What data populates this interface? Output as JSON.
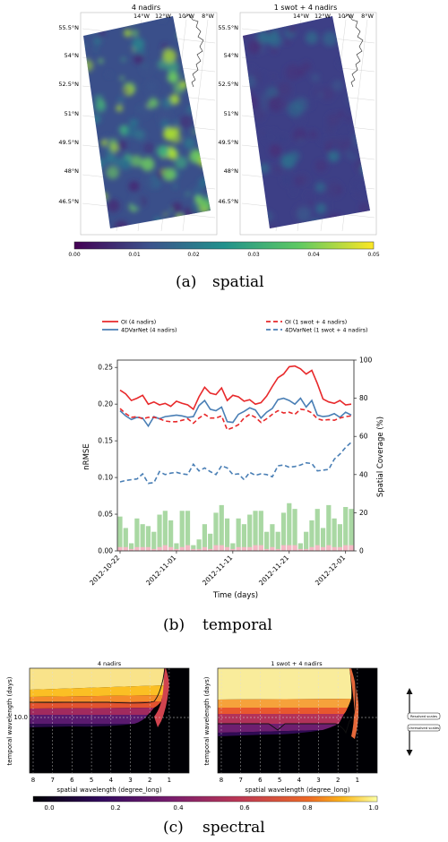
{
  "panel_a": {
    "maps": [
      {
        "title": "4 nadirs",
        "lon_ticks": [
          "14°W",
          "12°W",
          "10°W",
          "8°W"
        ],
        "lat_ticks": [
          "55.5°N",
          "54°N",
          "52.5°N",
          "51°N",
          "49.5°N",
          "48°N",
          "46.5°N"
        ]
      },
      {
        "title": "1 swot + 4 nadirs",
        "lon_ticks": [
          "14°W",
          "12°W",
          "10°W",
          "8°W"
        ],
        "lat_ticks": [
          "55.5°N",
          "54°N",
          "52.5°N",
          "51°N",
          "49.5°N",
          "48°N",
          "46.5°N"
        ]
      }
    ],
    "colorbar": {
      "ticks": [
        "0.00",
        "0.01",
        "0.02",
        "0.03",
        "0.04",
        "0.05"
      ],
      "colormap": "viridis"
    },
    "caption_label": "(a)",
    "caption_text": "spatial"
  },
  "panel_b": {
    "caption_label": "(b)",
    "caption_text": "temporal"
  },
  "panel_c": {
    "heatmaps": [
      {
        "title": "4 nadirs",
        "ylabel": "temporal wavelength (days)",
        "xlabel": "spatial wavelength (degree_long)",
        "x_ticks": [
          "8",
          "7",
          "6",
          "5",
          "4",
          "3",
          "2",
          "1"
        ],
        "y_ticks": [
          "10.0"
        ]
      },
      {
        "title": "1 swot + 4 nadirs",
        "ylabel": "temporal wavelength (days)",
        "xlabel": "spatial wavelength (degree_long)",
        "x_ticks": [
          "8",
          "7",
          "6",
          "5",
          "4",
          "3",
          "2",
          "1"
        ],
        "y_ticks": []
      }
    ],
    "legend": {
      "resolved": "Resolved scales",
      "unresolved": "Unresolved scales"
    },
    "colorbar": {
      "ticks": [
        "0.0",
        "0.2",
        "0.4",
        "0.6",
        "0.8",
        "1.0"
      ],
      "colormap": "inferno"
    },
    "caption_label": "(c)",
    "caption_text": "spectral"
  },
  "chart_data": {
    "type": "line",
    "xlabel": "Time (days)",
    "ylabel": "nRMSE",
    "ylabel_right": "Spatial Coverage (%)",
    "x": [
      "2012-10-22",
      "2012-10-23",
      "2012-10-24",
      "2012-10-25",
      "2012-10-26",
      "2012-10-27",
      "2012-10-28",
      "2012-10-29",
      "2012-10-30",
      "2012-10-31",
      "2012-11-01",
      "2012-11-02",
      "2012-11-03",
      "2012-11-04",
      "2012-11-05",
      "2012-11-06",
      "2012-11-07",
      "2012-11-08",
      "2012-11-09",
      "2012-11-10",
      "2012-11-11",
      "2012-11-12",
      "2012-11-13",
      "2012-11-14",
      "2012-11-15",
      "2012-11-16",
      "2012-11-17",
      "2012-11-18",
      "2012-11-19",
      "2012-11-20",
      "2012-11-21",
      "2012-11-22",
      "2012-11-23",
      "2012-11-24",
      "2012-11-25",
      "2012-11-26",
      "2012-11-27",
      "2012-11-28",
      "2012-11-29",
      "2012-11-30",
      "2012-12-01",
      "2012-12-02"
    ],
    "x_ticks": [
      "2012-10-22",
      "2012-11-01",
      "2012-11-11",
      "2012-11-21",
      "2012-12-01"
    ],
    "ylim": [
      0,
      0.26
    ],
    "y_ticks": [
      "0.00",
      "0.05",
      "0.10",
      "0.15",
      "0.20",
      "0.25"
    ],
    "ylim_right": [
      0,
      100
    ],
    "y_ticks_right": [
      "0",
      "20",
      "40",
      "60",
      "80",
      "100"
    ],
    "legend_placement": "top",
    "series": [
      {
        "name": "OI (4 nadirs)",
        "color": "#e8292b",
        "dash": "solid",
        "values": [
          0.219,
          0.214,
          0.205,
          0.208,
          0.212,
          0.2,
          0.203,
          0.199,
          0.201,
          0.197,
          0.204,
          0.201,
          0.199,
          0.193,
          0.21,
          0.223,
          0.215,
          0.213,
          0.222,
          0.205,
          0.212,
          0.21,
          0.204,
          0.206,
          0.2,
          0.202,
          0.211,
          0.224,
          0.236,
          0.241,
          0.251,
          0.252,
          0.248,
          0.241,
          0.246,
          0.228,
          0.207,
          0.203,
          0.201,
          0.205,
          0.199,
          0.2
        ]
      },
      {
        "name": "4DVarNet (4 nadirs)",
        "color": "#4a7fb5",
        "dash": "solid",
        "values": [
          0.191,
          0.184,
          0.179,
          0.182,
          0.181,
          0.17,
          0.183,
          0.18,
          0.183,
          0.184,
          0.185,
          0.184,
          0.182,
          0.183,
          0.198,
          0.205,
          0.193,
          0.191,
          0.196,
          0.176,
          0.175,
          0.186,
          0.19,
          0.195,
          0.192,
          0.181,
          0.189,
          0.194,
          0.206,
          0.208,
          0.205,
          0.2,
          0.208,
          0.196,
          0.205,
          0.185,
          0.183,
          0.184,
          0.187,
          0.182,
          0.189,
          0.185
        ]
      },
      {
        "name": "OI (1 swot + 4 nadirs)",
        "color": "#e8292b",
        "dash": "dashed",
        "values": [
          0.194,
          0.187,
          0.182,
          0.183,
          0.18,
          0.182,
          0.182,
          0.18,
          0.177,
          0.176,
          0.176,
          0.178,
          0.18,
          0.174,
          0.181,
          0.186,
          0.181,
          0.181,
          0.184,
          0.165,
          0.168,
          0.172,
          0.181,
          0.186,
          0.182,
          0.175,
          0.18,
          0.186,
          0.191,
          0.188,
          0.189,
          0.186,
          0.193,
          0.192,
          0.188,
          0.18,
          0.178,
          0.179,
          0.178,
          0.181,
          0.183,
          0.184
        ]
      },
      {
        "name": "4DVarNet (1 swot + 4 nadirs)",
        "color": "#4a7fb5",
        "dash": "dashed",
        "values": [
          0.094,
          0.096,
          0.097,
          0.098,
          0.105,
          0.092,
          0.093,
          0.108,
          0.104,
          0.106,
          0.107,
          0.105,
          0.104,
          0.118,
          0.109,
          0.113,
          0.108,
          0.104,
          0.116,
          0.113,
          0.104,
          0.105,
          0.097,
          0.107,
          0.103,
          0.105,
          0.104,
          0.101,
          0.116,
          0.117,
          0.114,
          0.115,
          0.117,
          0.12,
          0.119,
          0.109,
          0.11,
          0.111,
          0.125,
          0.132,
          0.141,
          0.148
        ]
      },
      {
        "name": "",
        "color": "#a9d8a3",
        "type": "bar",
        "axis": "right",
        "values": [
          18,
          12,
          4,
          17,
          14,
          13,
          10,
          19,
          21,
          16,
          4,
          21,
          21,
          3,
          6,
          14,
          9,
          20,
          24,
          17,
          4,
          17,
          14,
          19,
          21,
          21,
          10,
          14,
          10,
          20,
          25,
          22,
          4,
          10,
          16,
          22,
          12,
          24,
          17,
          14,
          23,
          22
        ]
      },
      {
        "name": "",
        "color": "#f4b8c4",
        "type": "bar",
        "axis": "right",
        "values": [
          2,
          2,
          1,
          2,
          2,
          2,
          1,
          2,
          3,
          2,
          1,
          2,
          3,
          1,
          1,
          2,
          1,
          3,
          3,
          2,
          1,
          2,
          2,
          2,
          3,
          3,
          1,
          2,
          1,
          3,
          3,
          3,
          1,
          1,
          2,
          3,
          2,
          3,
          2,
          2,
          3,
          3
        ]
      }
    ]
  }
}
